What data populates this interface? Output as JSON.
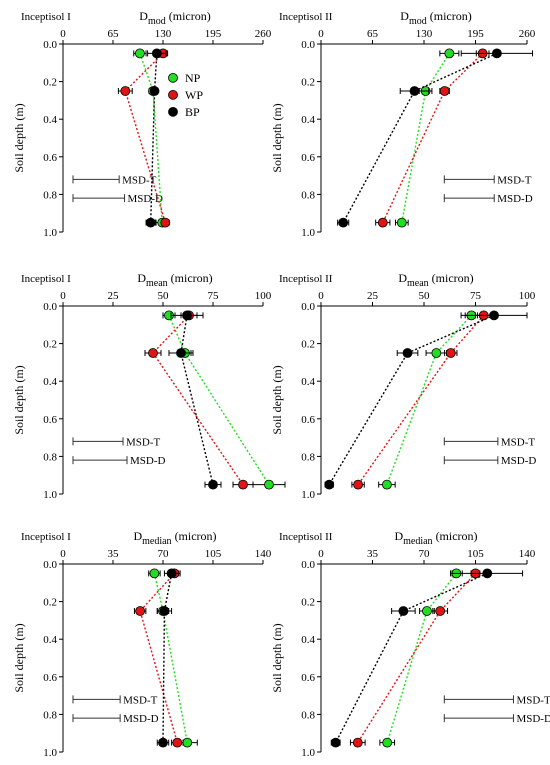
{
  "colors": {
    "NP": "#22dd22",
    "WP": "#e01414",
    "BP": "#000000",
    "axis": "#000000",
    "msd": "#333333"
  },
  "legend": [
    {
      "key": "NP",
      "label": "NP"
    },
    {
      "key": "WP",
      "label": "WP"
    },
    {
      "key": "BP",
      "label": "BP"
    }
  ],
  "chart_data": [
    {
      "id": "p1",
      "type": "scatter",
      "panel_label": "Inceptisol I",
      "title_main": "D",
      "title_sub": "mod",
      "title_unit": "(micron)",
      "ylabel": "Soil depth (m)",
      "xlim": [
        0,
        260
      ],
      "xticks": [
        "0",
        "65",
        "130",
        "195",
        "260"
      ],
      "ylim": [
        0,
        1
      ],
      "yticks": [
        "0.0",
        "0.2",
        "0.4",
        "0.6",
        "0.8",
        "1.0"
      ],
      "depths": [
        0.05,
        0.25,
        0.95
      ],
      "show_legend": true,
      "series": [
        {
          "name": "NP",
          "x": [
            100,
            117,
            129
          ],
          "err": [
            8,
            5,
            8
          ]
        },
        {
          "name": "WP",
          "x": [
            130,
            81,
            133
          ],
          "err": [
            6,
            9,
            5
          ]
        },
        {
          "name": "BP",
          "x": [
            122,
            119,
            114
          ],
          "err": [
            12,
            4,
            6
          ]
        }
      ],
      "msd": [
        {
          "label": "MSD-T",
          "value": 60
        },
        {
          "label": "MSD-D",
          "value": 67
        }
      ]
    },
    {
      "id": "p2",
      "type": "scatter",
      "panel_label": "Inceptisol II",
      "title_main": "D",
      "title_sub": "mod",
      "title_unit": "(micron)",
      "ylabel": "Soil depth (m)",
      "xlim": [
        0,
        260
      ],
      "xticks": [
        "0",
        "65",
        "130",
        "195",
        "260"
      ],
      "ylim": [
        0,
        1
      ],
      "yticks": [
        "0.0",
        "0.2",
        "0.4",
        "0.6",
        "0.8",
        "1.0"
      ],
      "depths": [
        0.05,
        0.25,
        0.95
      ],
      "show_legend": false,
      "series": [
        {
          "name": "NP",
          "x": [
            162,
            132,
            102
          ],
          "err": [
            12,
            8,
            8
          ]
        },
        {
          "name": "WP",
          "x": [
            204,
            156,
            78
          ],
          "err": [
            8,
            6,
            9
          ]
        },
        {
          "name": "BP",
          "x": [
            222,
            118,
            28
          ],
          "err": [
            45,
            18,
            7
          ]
        }
      ],
      "msd": [
        {
          "label": "MSD-T",
          "value": 63
        },
        {
          "label": "MSD-D",
          "value": 63
        }
      ]
    },
    {
      "id": "p3",
      "type": "scatter",
      "panel_label": "Inceptisol I",
      "title_main": "D",
      "title_sub": "mean",
      "title_unit": "(micron)",
      "ylabel": "Soil depth (m)",
      "xlim": [
        0,
        100
      ],
      "xticks": [
        "0",
        "25",
        "50",
        "75",
        "100"
      ],
      "ylim": [
        0,
        1
      ],
      "yticks": [
        "0.0",
        "0.2",
        "0.4",
        "0.6",
        "0.8",
        "1.0"
      ],
      "depths": [
        0.05,
        0.25,
        0.95
      ],
      "show_legend": false,
      "series": [
        {
          "name": "NP",
          "x": [
            53,
            61,
            103
          ],
          "err": [
            3,
            3,
            8
          ]
        },
        {
          "name": "WP",
          "x": [
            63,
            45,
            90
          ],
          "err": [
            4,
            4,
            5
          ]
        },
        {
          "name": "BP",
          "x": [
            62,
            59,
            75
          ],
          "err": [
            8,
            6,
            4
          ]
        }
      ],
      "msd": [
        {
          "label": "MSD-T",
          "value": 25
        },
        {
          "label": "MSD-D",
          "value": 27
        }
      ]
    },
    {
      "id": "p4",
      "type": "scatter",
      "panel_label": "Inceptisol II",
      "title_main": "D",
      "title_sub": "mean",
      "title_unit": "(micron)",
      "ylabel": "Soil depth (m)",
      "xlim": [
        0,
        100
      ],
      "xticks": [
        "0",
        "25",
        "50",
        "75",
        "100"
      ],
      "ylim": [
        0,
        1
      ],
      "yticks": [
        "0.0",
        "0.2",
        "0.4",
        "0.6",
        "0.8",
        "1.0"
      ],
      "depths": [
        0.05,
        0.25,
        0.95
      ],
      "show_legend": false,
      "series": [
        {
          "name": "NP",
          "x": [
            73,
            56,
            32
          ],
          "err": [
            3,
            5,
            4
          ]
        },
        {
          "name": "WP",
          "x": [
            79,
            63,
            18
          ],
          "err": [
            4,
            3,
            3
          ]
        },
        {
          "name": "BP",
          "x": [
            84,
            42,
            4
          ],
          "err": [
            16,
            5,
            2
          ]
        }
      ],
      "msd": [
        {
          "label": "MSD-T",
          "value": 26
        },
        {
          "label": "MSD-D",
          "value": 26
        }
      ]
    },
    {
      "id": "p5",
      "type": "scatter",
      "panel_label": "Inceptisol I",
      "title_main": "D",
      "title_sub": "median",
      "title_unit": "(micron)",
      "ylabel": "Soil depth (m)",
      "xlim": [
        0,
        140
      ],
      "xticks": [
        "0",
        "35",
        "70",
        "105",
        "140"
      ],
      "ylim": [
        0,
        1
      ],
      "yticks": [
        "0.0",
        "0.2",
        "0.4",
        "0.6",
        "0.8",
        "1.0"
      ],
      "depths": [
        0.05,
        0.25,
        0.95
      ],
      "show_legend": false,
      "series": [
        {
          "name": "NP",
          "x": [
            64,
            70,
            87
          ],
          "err": [
            4,
            4,
            7
          ]
        },
        {
          "name": "WP",
          "x": [
            78,
            54,
            80
          ],
          "err": [
            4,
            4,
            4
          ]
        },
        {
          "name": "BP",
          "x": [
            76,
            71,
            70
          ],
          "err": [
            5,
            5,
            4
          ]
        }
      ],
      "msd": [
        {
          "label": "MSD-T",
          "value": 33
        },
        {
          "label": "MSD-D",
          "value": 33
        }
      ]
    },
    {
      "id": "p6",
      "type": "scatter",
      "panel_label": "Inceptisol II",
      "title_main": "D",
      "title_sub": "median",
      "title_unit": "(micron)",
      "ylabel": "Soil depth (m)",
      "xlim": [
        0,
        140
      ],
      "xticks": [
        "0",
        "35",
        "70",
        "105",
        "140"
      ],
      "ylim": [
        0,
        1
      ],
      "yticks": [
        "0.0",
        "0.2",
        "0.4",
        "0.6",
        "0.8",
        "1.0"
      ],
      "depths": [
        0.05,
        0.25,
        0.95
      ],
      "show_legend": false,
      "series": [
        {
          "name": "NP",
          "x": [
            92,
            72,
            45
          ],
          "err": [
            4,
            5,
            5
          ]
        },
        {
          "name": "WP",
          "x": [
            105,
            81,
            25
          ],
          "err": [
            3,
            5,
            5
          ]
        },
        {
          "name": "BP",
          "x": [
            113,
            56,
            10
          ],
          "err": [
            24,
            8,
            3
          ]
        }
      ],
      "msd": [
        {
          "label": "MSD-T",
          "value": 47
        },
        {
          "label": "MSD-D",
          "value": 47
        }
      ]
    }
  ]
}
